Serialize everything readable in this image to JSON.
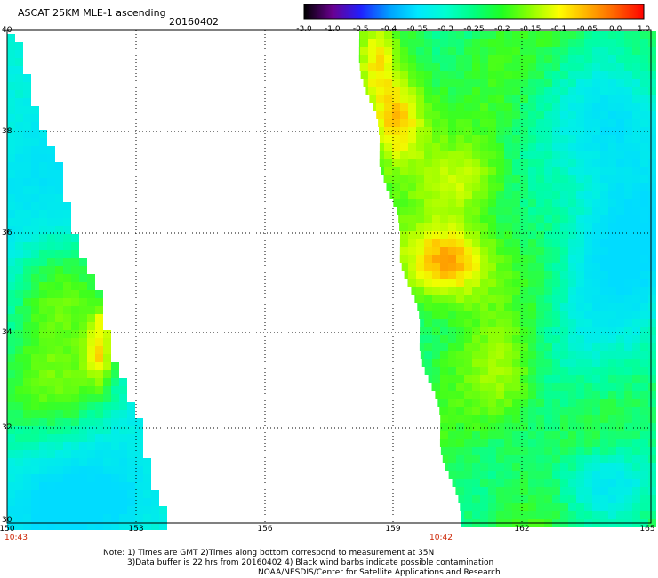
{
  "header": {
    "title": "ASCAT 25KM MLE-1 ascending",
    "date": "20160402"
  },
  "colorbar": {
    "labels": [
      "-3.0",
      "-1.0",
      "-0.5",
      "-0.4",
      "-0.35",
      "-0.3",
      "-0.25",
      "-0.2",
      "-0.15",
      "-0.1",
      "-0.05",
      "0.0",
      "1.0"
    ],
    "colors": [
      "#000000",
      "#6a0090",
      "#2020ff",
      "#00a0ff",
      "#00e8ff",
      "#00ffd0",
      "#00ff80",
      "#20ff20",
      "#90ff00",
      "#ffff00",
      "#ffb000",
      "#ff6000",
      "#ff0000"
    ]
  },
  "axes": {
    "x_labels": [
      "150",
      "153",
      "156",
      "159",
      "162",
      "165"
    ],
    "y_labels": [
      "40",
      "38",
      "36",
      "34",
      "32",
      "30"
    ]
  },
  "pass_times": [
    "10:43",
    "10:42"
  ],
  "notes": {
    "line1": "Note: 1) Times are GMT 2)Times along bottom correspond to measurement at 35N",
    "line2": "3)Data buffer is 22 hrs from 20160402 4) Black wind barbs indicate possible contamination",
    "line3": "NOAA/NESDIS/Center for Satellite Applications and Research"
  },
  "map": {
    "lon_range": [
      150,
      165
    ],
    "lat_range": [
      30,
      40
    ]
  }
}
